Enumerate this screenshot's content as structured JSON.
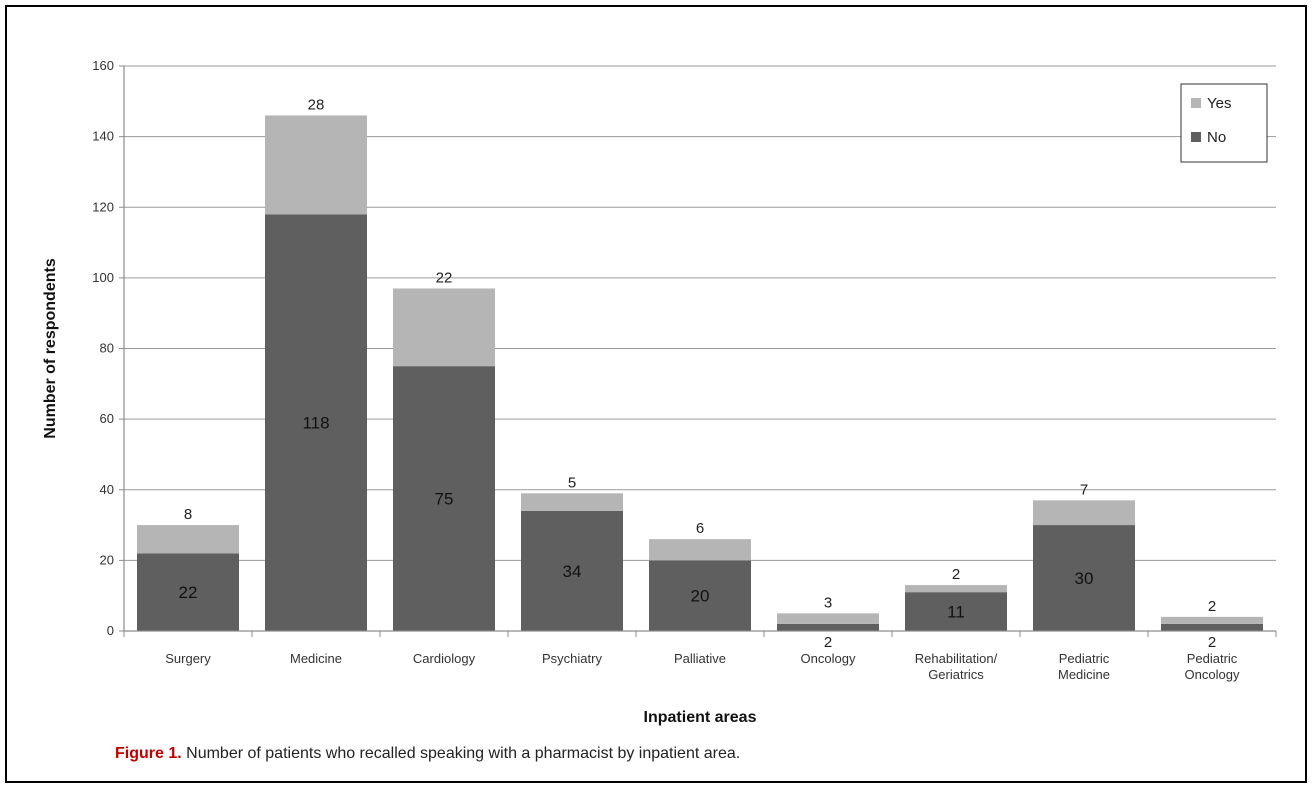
{
  "caption": {
    "label": "Figure 1.",
    "text": " Number of patients who recalled speaking with a pharmacist by inpatient area."
  },
  "chart_data": {
    "type": "bar",
    "stacked": true,
    "xlabel": "Inpatient areas",
    "ylabel": "Number of respondents",
    "ylim": [
      0,
      160
    ],
    "yticks": [
      0,
      20,
      40,
      60,
      80,
      100,
      120,
      140,
      160
    ],
    "grid": true,
    "legend_position": "top-right",
    "categories": [
      [
        "Surgery"
      ],
      [
        "Medicine"
      ],
      [
        "Cardiology"
      ],
      [
        "Psychiatry"
      ],
      [
        "Palliative"
      ],
      [
        "Oncology"
      ],
      [
        "Rehabilitation/",
        "Geriatrics"
      ],
      [
        "Pediatric",
        "Medicine"
      ],
      [
        "Pediatric",
        "Oncology"
      ]
    ],
    "series": [
      {
        "name": "No",
        "color": "#5f5f5f",
        "values": [
          22,
          118,
          75,
          34,
          20,
          2,
          11,
          30,
          2
        ]
      },
      {
        "name": "Yes",
        "color": "#b5b5b5",
        "values": [
          8,
          28,
          22,
          5,
          6,
          3,
          2,
          7,
          2
        ]
      }
    ],
    "legend_order": [
      "Yes",
      "No"
    ]
  }
}
